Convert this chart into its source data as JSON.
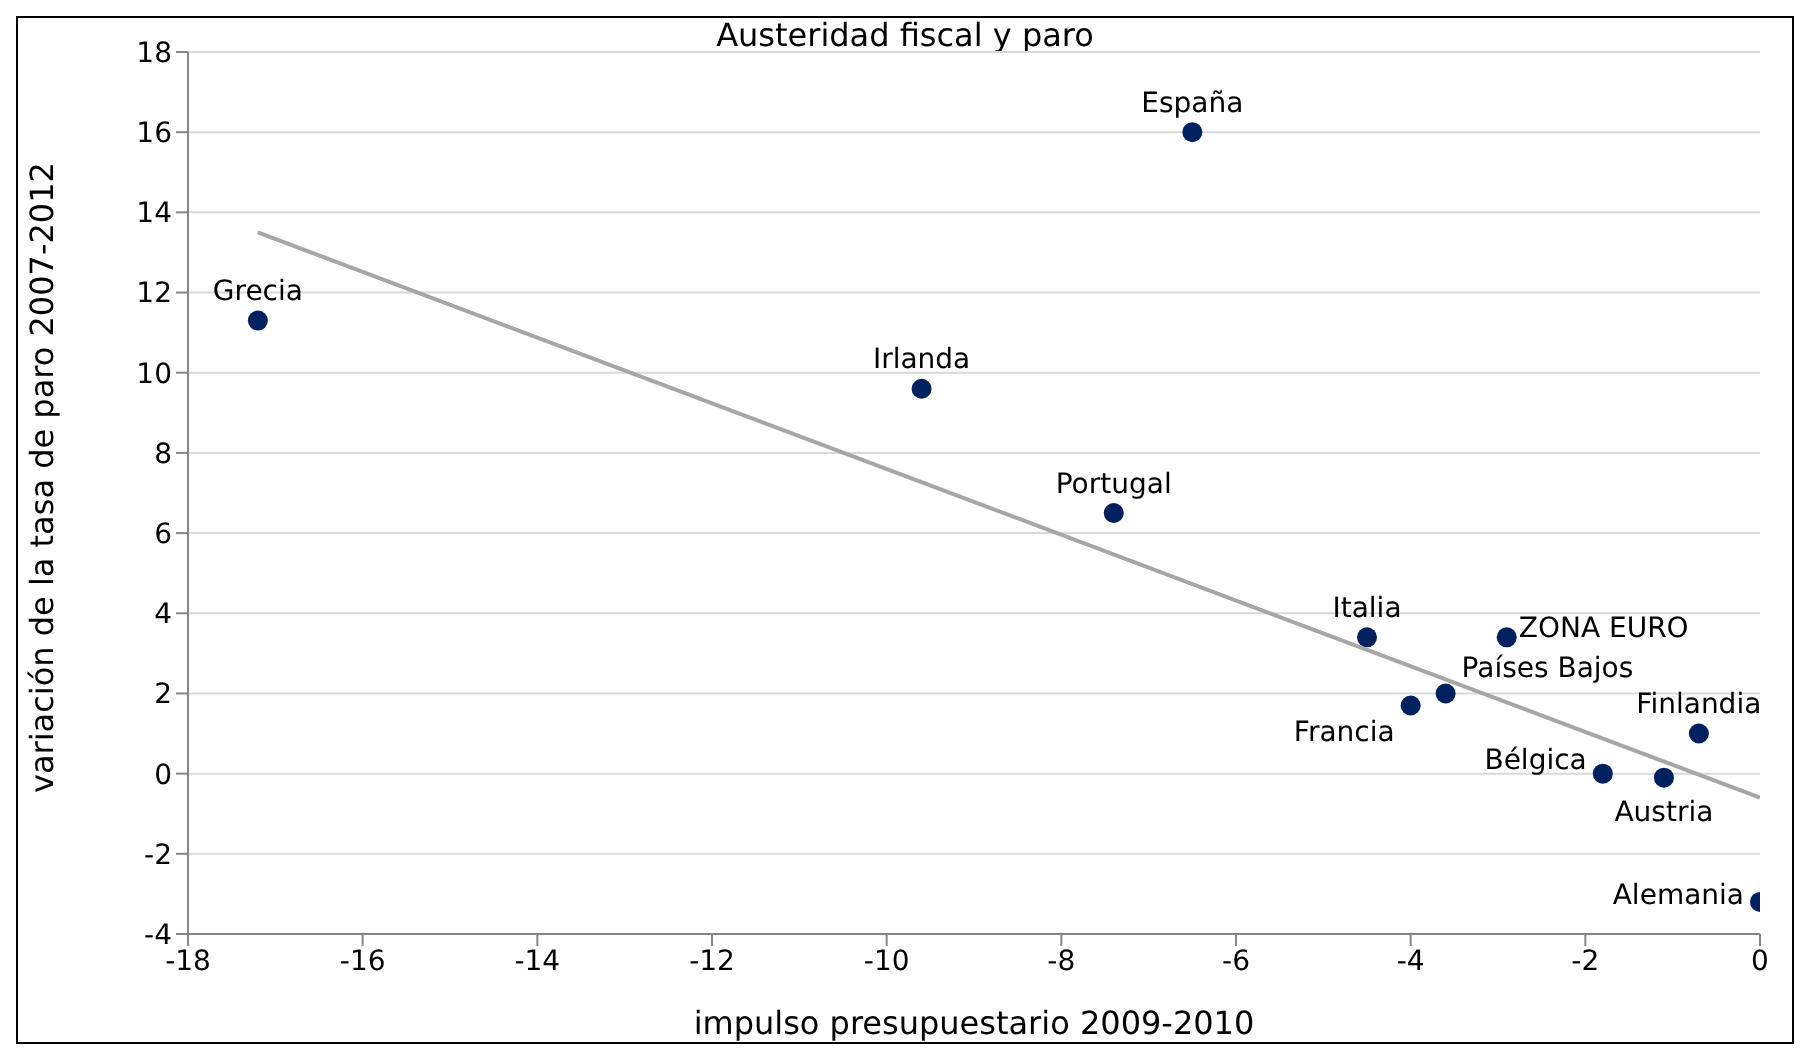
{
  "chart_data": {
    "type": "scatter",
    "title": "Austeridad fiscal y paro",
    "xlabel": "impulso presupuestario 2009-2010",
    "ylabel": "variación de la tasa de paro 2007-2012",
    "series": [
      {
        "color": "#00215f",
        "marker": "circle",
        "x": [
          -17.2,
          -6.5,
          -9.6,
          -7.4,
          -4.5,
          -2.9,
          -3.6,
          -4.0,
          -0.7,
          -1.8,
          -1.1,
          0
        ],
        "values": [
          11.3,
          16.0,
          9.6,
          6.5,
          3.4,
          3.4,
          2.0,
          1.7,
          1.0,
          0.0,
          -0.1,
          -3.2
        ]
      },
      {
        "type": "line",
        "color": "#a6a6a6",
        "marker": "none",
        "x": [
          -17.2,
          0
        ],
        "values": [
          13.5,
          -0.6
        ]
      }
    ],
    "annotations": [
      {
        "text": "Grecia",
        "x": -17.2,
        "y": 11.3
      },
      {
        "text": "España",
        "x": -6.5,
        "y": 16.0
      },
      {
        "text": "Irlanda",
        "x": -9.6,
        "y": 9.6
      },
      {
        "text": "Portugal",
        "x": -7.4,
        "y": 6.5
      },
      {
        "text": "Italia",
        "x": -4.5,
        "y": 3.4
      },
      {
        "text": "ZONA EURO",
        "x": -2.9,
        "y": 3.4
      },
      {
        "text": "Países Bajos",
        "x": -3.6,
        "y": 2.0
      },
      {
        "text": "Francia",
        "x": -4.0,
        "y": 1.7
      },
      {
        "text": "Finlandia",
        "x": -0.7,
        "y": 1.0
      },
      {
        "text": "Bélgica",
        "x": -1.8,
        "y": 0.0
      },
      {
        "text": "Austria",
        "x": -1.1,
        "y": -0.1
      },
      {
        "text": "Alemania",
        "x": 0,
        "y": -3.2
      }
    ],
    "xlim": [
      -18,
      0
    ],
    "xticks": [
      -18,
      -16,
      -14,
      -12,
      -10,
      -8,
      -6,
      -4,
      -2,
      0
    ],
    "ylim": [
      -4,
      18
    ],
    "yticks": [
      -4,
      -2,
      0,
      2,
      4,
      6,
      8,
      10,
      12,
      14,
      16,
      18
    ],
    "grid": "y",
    "legend": false
  }
}
